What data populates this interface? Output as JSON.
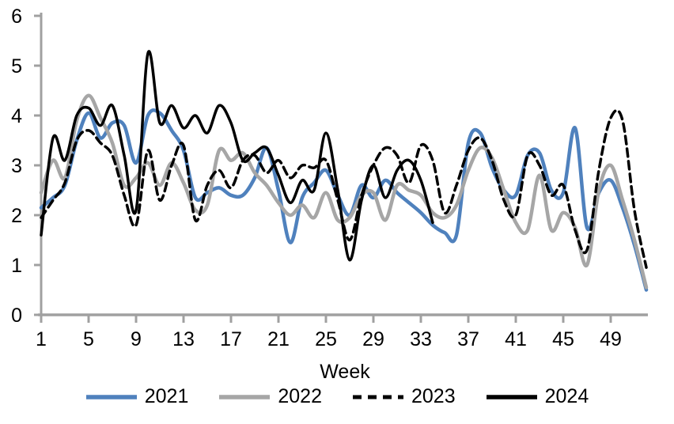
{
  "chart_data": {
    "type": "line",
    "title": "",
    "xlabel": "Week",
    "ylabel": "",
    "xlim": [
      1,
      52
    ],
    "ylim": [
      0,
      6
    ],
    "grid": false,
    "legend_position": "bottom",
    "axis_color": "#a0a0a0",
    "text_color": "#000000",
    "x_ticks": [
      1,
      5,
      9,
      13,
      17,
      21,
      25,
      29,
      33,
      37,
      41,
      45,
      49
    ],
    "x_tick_labels": [
      "1",
      "5",
      "9",
      "13",
      "17",
      "21",
      "25",
      "29",
      "33",
      "37",
      "41",
      "45",
      "49"
    ],
    "y_ticks": [
      0,
      1,
      2,
      3,
      4,
      5,
      6
    ],
    "y_tick_labels": [
      "0",
      "1",
      "2",
      "3",
      "4",
      "5",
      "6"
    ],
    "x_start_week": 1,
    "x_end_week": 52,
    "series": [
      {
        "name": "2021",
        "color": "#4f81bd",
        "style": "solid",
        "start_week": 1,
        "values": [
          2.15,
          2.35,
          2.6,
          3.5,
          4.05,
          3.55,
          3.85,
          3.8,
          3.05,
          4.0,
          4.05,
          3.7,
          3.3,
          2.35,
          2.45,
          2.55,
          2.4,
          2.4,
          2.75,
          3.35,
          2.5,
          1.45,
          2.35,
          2.65,
          2.9,
          2.4,
          2.0,
          2.6,
          2.35,
          2.7,
          2.45,
          2.25,
          2.05,
          1.8,
          1.65,
          1.6,
          3.45,
          3.65,
          2.95,
          2.5,
          2.4,
          3.2,
          3.25,
          2.5,
          2.45,
          3.75,
          1.75,
          2.45,
          2.7,
          2.15,
          1.4,
          0.5
        ]
      },
      {
        "name": "2022",
        "color": "#a6a6a6",
        "style": "solid",
        "start_week": 1,
        "values": [
          2.45,
          3.1,
          2.75,
          3.9,
          4.4,
          3.95,
          3.45,
          2.6,
          2.75,
          3.05,
          2.6,
          3.05,
          2.65,
          2.1,
          2.2,
          3.3,
          3.1,
          3.25,
          2.85,
          2.6,
          2.25,
          2.0,
          2.2,
          1.95,
          2.45,
          1.9,
          1.95,
          2.4,
          2.45,
          1.9,
          2.6,
          2.5,
          2.4,
          2.05,
          1.95,
          2.2,
          2.9,
          3.35,
          3.15,
          2.5,
          1.85,
          1.7,
          2.8,
          1.7,
          2.05,
          1.75,
          1.0,
          2.5,
          3.0,
          2.3,
          1.5,
          0.55
        ]
      },
      {
        "name": "2023",
        "color": "#000000",
        "style": "dashed",
        "start_week": 1,
        "values": [
          1.95,
          2.3,
          2.65,
          3.5,
          3.7,
          3.45,
          3.2,
          2.4,
          1.8,
          3.3,
          2.3,
          3.0,
          3.4,
          1.9,
          2.6,
          2.9,
          2.55,
          3.1,
          3.2,
          2.85,
          3.1,
          2.75,
          3.0,
          2.95,
          3.1,
          2.3,
          1.5,
          2.4,
          3.0,
          3.35,
          3.2,
          2.65,
          3.4,
          3.1,
          2.05,
          2.6,
          3.3,
          3.55,
          3.1,
          2.3,
          2.0,
          3.2,
          3.0,
          2.4,
          2.6,
          1.7,
          1.3,
          2.9,
          3.95,
          3.9,
          2.1,
          0.95
        ]
      },
      {
        "name": "2024",
        "color": "#000000",
        "style": "solid",
        "start_week": 1,
        "values": [
          1.6,
          3.55,
          3.1,
          4.0,
          4.15,
          3.8,
          4.2,
          3.2,
          2.1,
          5.25,
          3.85,
          4.2,
          3.75,
          4.0,
          3.65,
          4.2,
          3.85,
          3.1,
          3.25,
          3.35,
          2.8,
          2.25,
          2.7,
          2.5,
          3.65,
          2.5,
          1.1,
          2.3,
          3.0,
          2.35,
          2.9,
          3.1,
          2.7,
          1.85
        ]
      }
    ]
  }
}
